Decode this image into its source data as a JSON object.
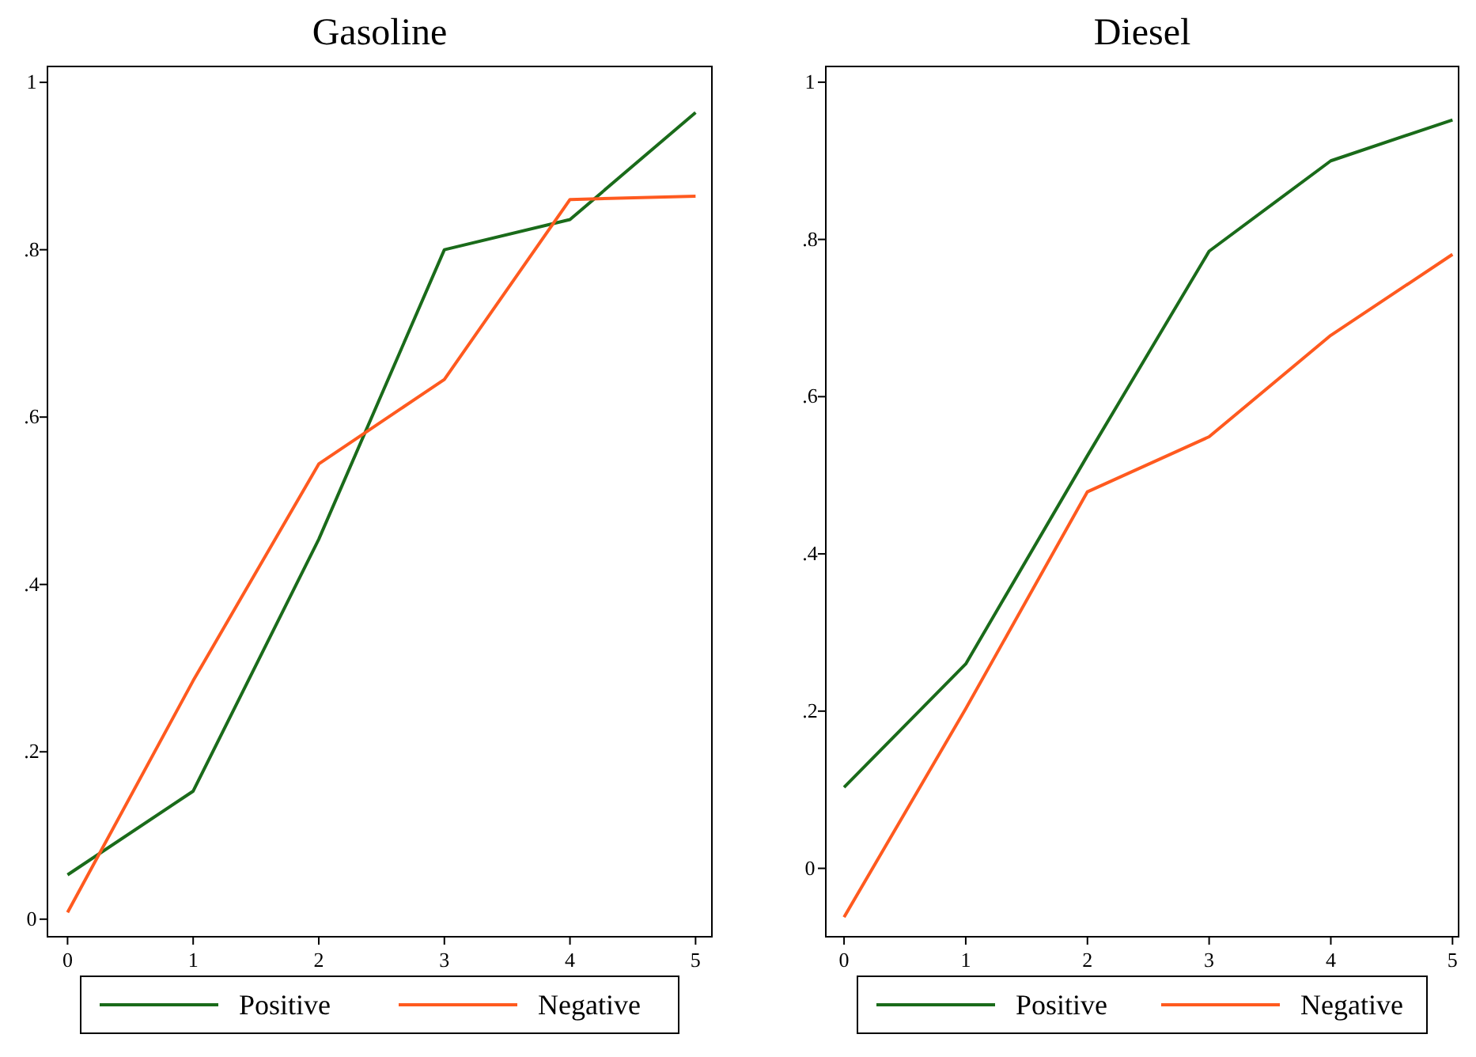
{
  "chart_data": [
    {
      "type": "line",
      "title": "Gasoline",
      "x": [
        0,
        1,
        2,
        3,
        4,
        5
      ],
      "xlim": [
        -0.16,
        5.13
      ],
      "xticks": [
        0,
        1,
        2,
        3,
        4,
        5
      ],
      "ylim": [
        -0.021,
        1.019
      ],
      "yticks": [
        {
          "value": 0,
          "label": "0"
        },
        {
          "value": 0.2,
          "label": ".2"
        },
        {
          "value": 0.4,
          "label": ".4"
        },
        {
          "value": 0.6,
          "label": ".6"
        },
        {
          "value": 0.8,
          "label": ".8"
        },
        {
          "value": 1,
          "label": "1"
        }
      ],
      "legend": "bottom",
      "line_style": "solid",
      "series": [
        {
          "name": "Positive",
          "color": "#1a6b1a",
          "values": [
            0.053,
            0.153,
            0.454,
            0.8,
            0.836,
            0.964
          ]
        },
        {
          "name": "Negative",
          "color": "#ff5a1f",
          "values": [
            0.008,
            0.285,
            0.544,
            0.645,
            0.86,
            0.864
          ]
        }
      ]
    },
    {
      "type": "line",
      "title": "Diesel",
      "x": [
        0,
        1,
        2,
        3,
        4,
        5
      ],
      "xlim": [
        -0.15,
        5.05
      ],
      "xticks": [
        0,
        1,
        2,
        3,
        4,
        5
      ],
      "ylim": [
        -0.087,
        1.02
      ],
      "yticks": [
        {
          "value": 0,
          "label": "0"
        },
        {
          "value": 0.2,
          "label": ".2"
        },
        {
          "value": 0.4,
          "label": ".4"
        },
        {
          "value": 0.6,
          "label": ".6"
        },
        {
          "value": 0.8,
          "label": ".8"
        },
        {
          "value": 1,
          "label": "1"
        }
      ],
      "legend": "bottom",
      "line_style": "solid",
      "series": [
        {
          "name": "Positive",
          "color": "#1a6b1a",
          "values": [
            0.103,
            0.26,
            0.525,
            0.785,
            0.9,
            0.952
          ]
        },
        {
          "name": "Negative",
          "color": "#ff5a1f",
          "values": [
            -0.062,
            0.203,
            0.479,
            0.549,
            0.678,
            0.781
          ]
        }
      ]
    }
  ]
}
